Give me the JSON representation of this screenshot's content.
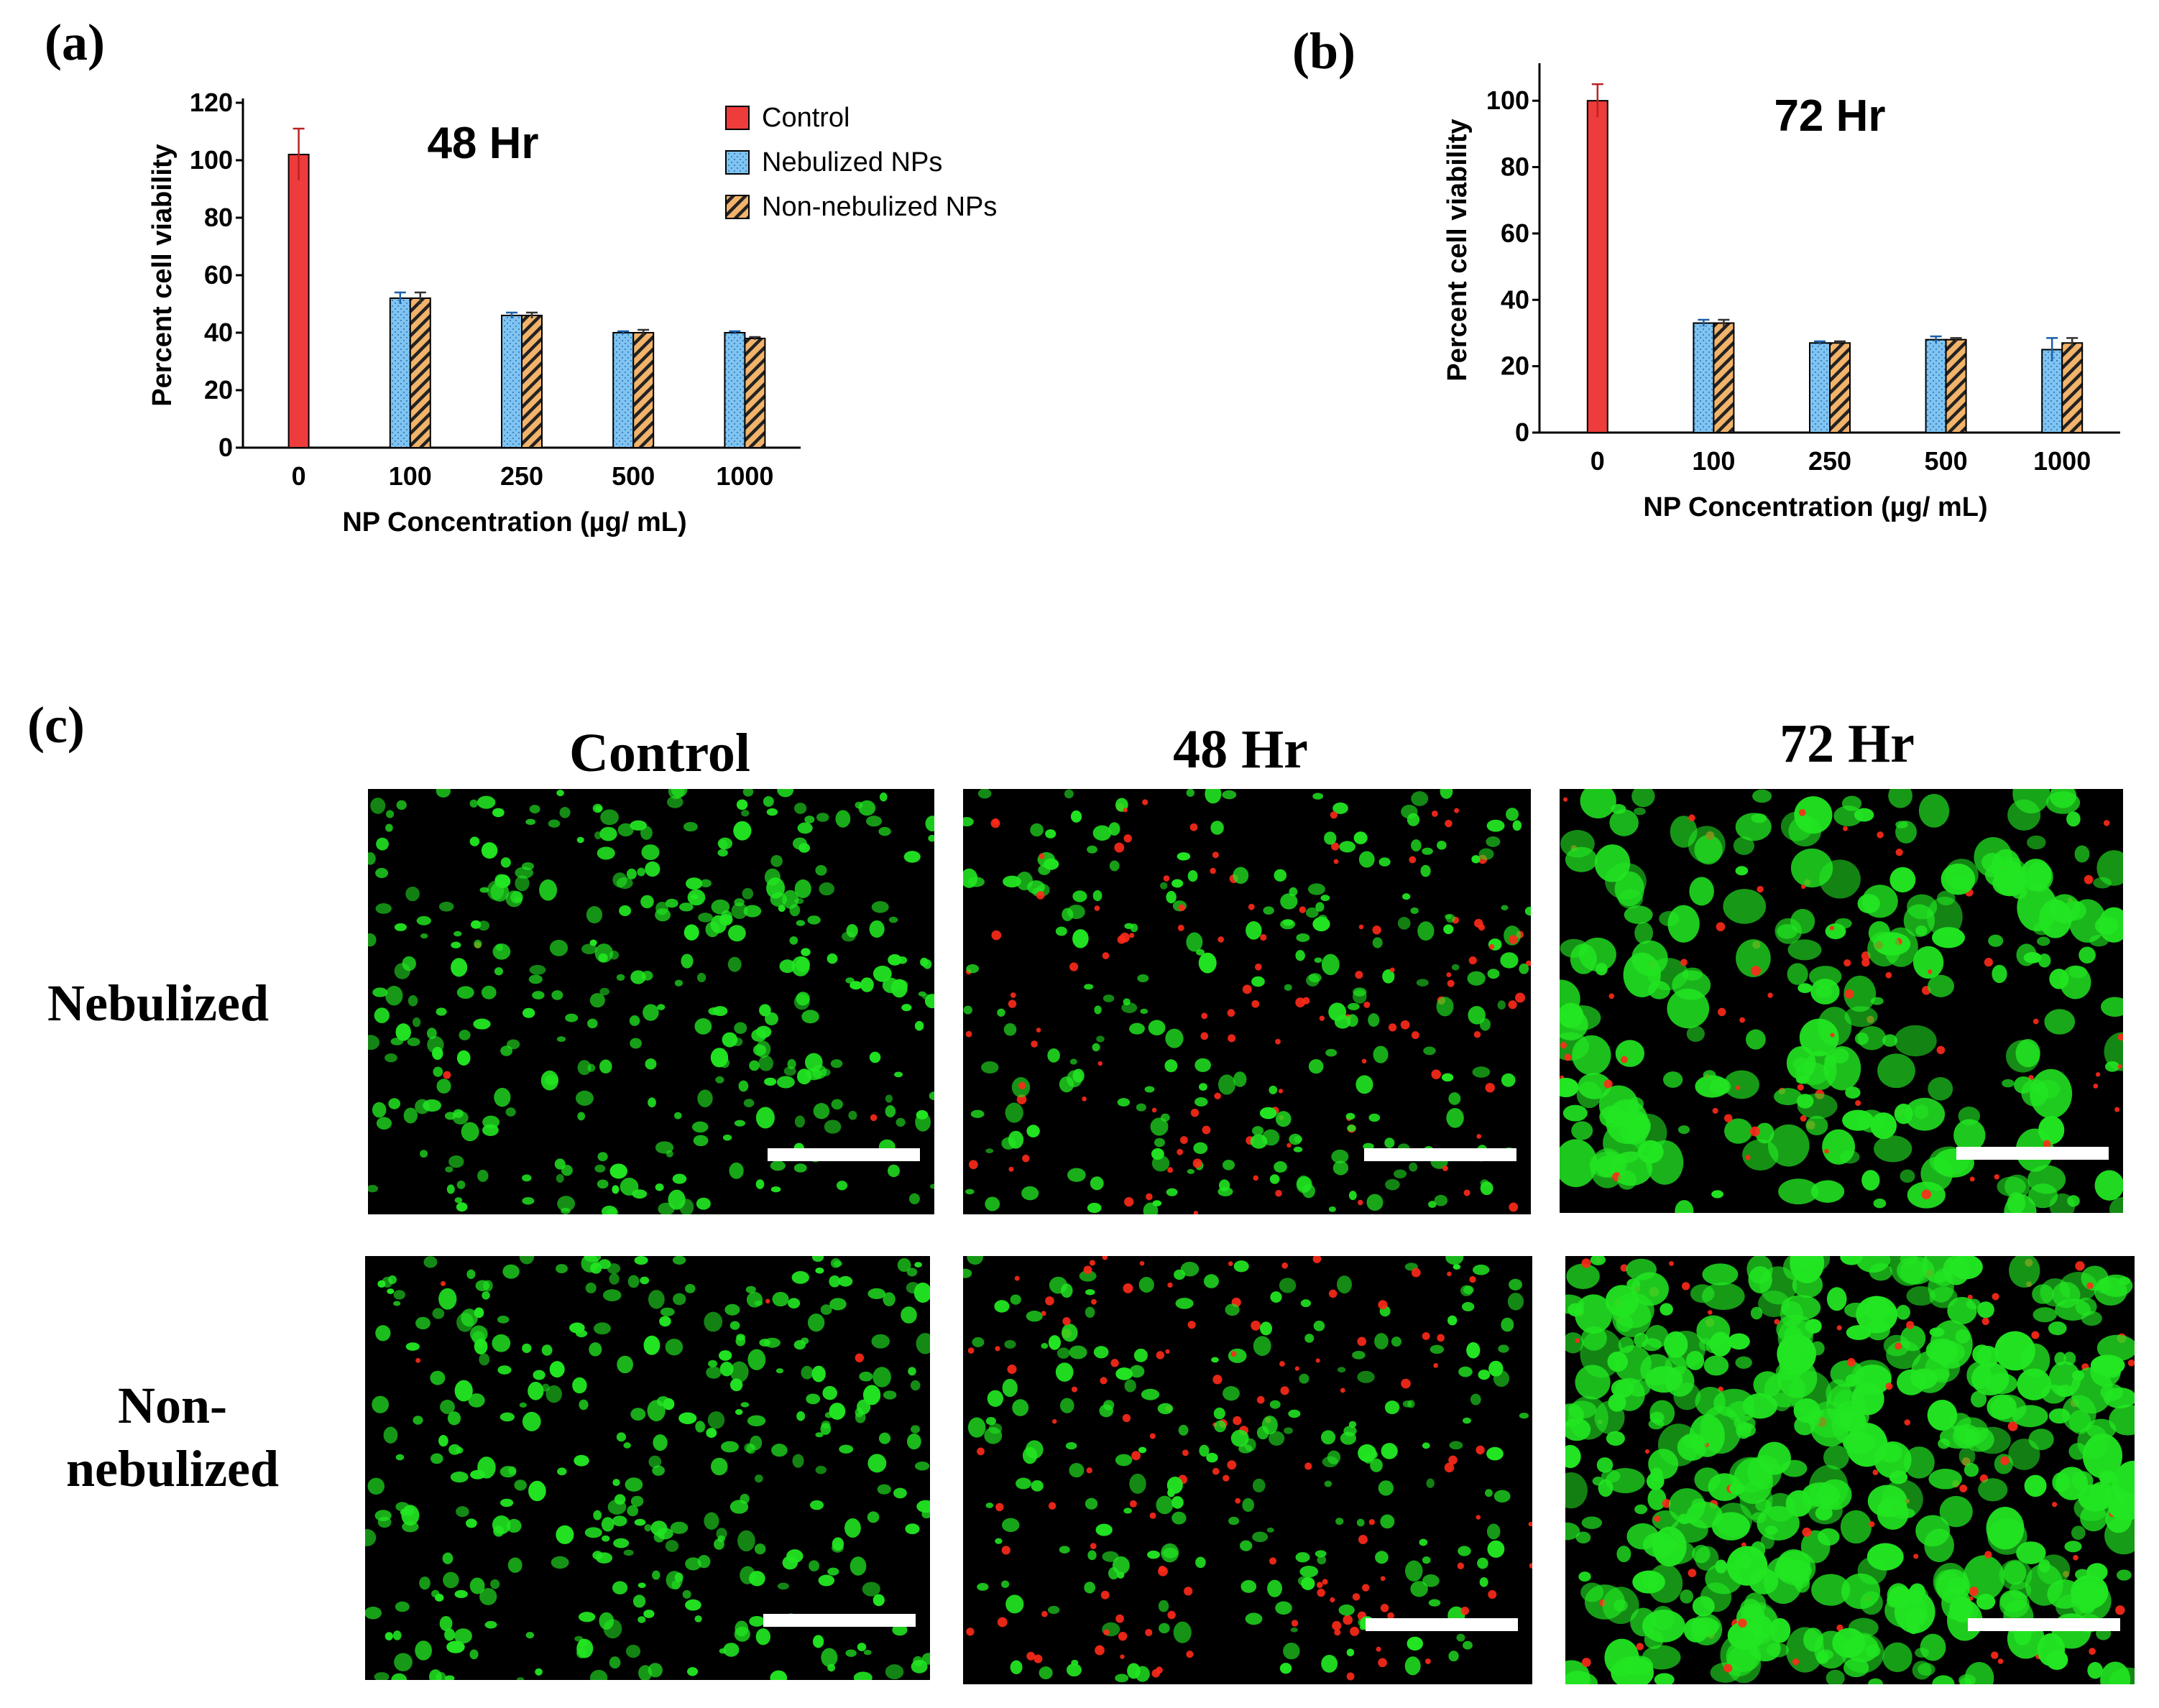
{
  "panels": {
    "a_letter": "(a)",
    "b_letter": "(b)",
    "c_letter": "(c)"
  },
  "legend": [
    {
      "label": "Control",
      "color": "#ee3b3b",
      "pattern": "solid"
    },
    {
      "label": "Nebulized NPs",
      "color": "#7fc4f2",
      "pattern": "dots"
    },
    {
      "label": "Non-nebulized NPs",
      "color": "#f2b36b",
      "pattern": "hatch"
    }
  ],
  "chart_data": [
    {
      "type": "bar",
      "panel": "(a)",
      "title": "48 Hr",
      "xlabel": "NP Concentration (µg/ mL)",
      "ylabel": "Percent cell  viability",
      "categories": [
        "0",
        "100",
        "250",
        "500",
        "1000"
      ],
      "ylim": [
        0,
        120
      ],
      "yticks": [
        "0",
        "20",
        "40",
        "60",
        "80",
        "100",
        "120"
      ],
      "series": [
        {
          "name": "Control",
          "values": [
            102,
            null,
            null,
            null,
            null
          ],
          "errors": [
            9,
            null,
            null,
            null,
            null
          ]
        },
        {
          "name": "Nebulized NPs",
          "values": [
            null,
            52,
            46,
            40,
            40
          ],
          "errors": [
            null,
            2,
            1,
            0.5,
            0.5
          ]
        },
        {
          "name": "Non-nebulized NPs",
          "values": [
            null,
            52,
            46,
            40,
            38
          ],
          "errors": [
            null,
            2,
            1,
            1,
            0.5
          ]
        }
      ],
      "legend_position": "top-right"
    },
    {
      "type": "bar",
      "panel": "(b)",
      "title": "72 Hr",
      "xlabel": "NP Concentration (µg/ mL)",
      "ylabel": "Percent cell  viability",
      "categories": [
        "0",
        "100",
        "250",
        "500",
        "1000"
      ],
      "ylim": [
        0,
        110
      ],
      "yticks": [
        "0",
        "20",
        "40",
        "60",
        "80",
        "100"
      ],
      "series": [
        {
          "name": "Control",
          "values": [
            100,
            null,
            null,
            null,
            null
          ],
          "errors": [
            5,
            null,
            null,
            null,
            null
          ]
        },
        {
          "name": "Nebulized NPs",
          "values": [
            null,
            33,
            27,
            28,
            25
          ],
          "errors": [
            null,
            1,
            0.5,
            1,
            3.5
          ]
        },
        {
          "name": "Non-nebulized NPs",
          "values": [
            null,
            33,
            27,
            28,
            27
          ],
          "errors": [
            null,
            1,
            0.5,
            0.5,
            1.5
          ]
        }
      ]
    }
  ],
  "micrographs": {
    "columns": [
      "Control",
      "48 Hr",
      "72 Hr"
    ],
    "rows": [
      "Nebulized",
      "Non-\nnebulized"
    ],
    "colors": {
      "live": "#22e622",
      "dead": "#ff2a1a",
      "background": "#000000"
    },
    "dead_fraction": [
      [
        0.01,
        0.35,
        0.25
      ],
      [
        0.01,
        0.4,
        0.15
      ]
    ]
  }
}
